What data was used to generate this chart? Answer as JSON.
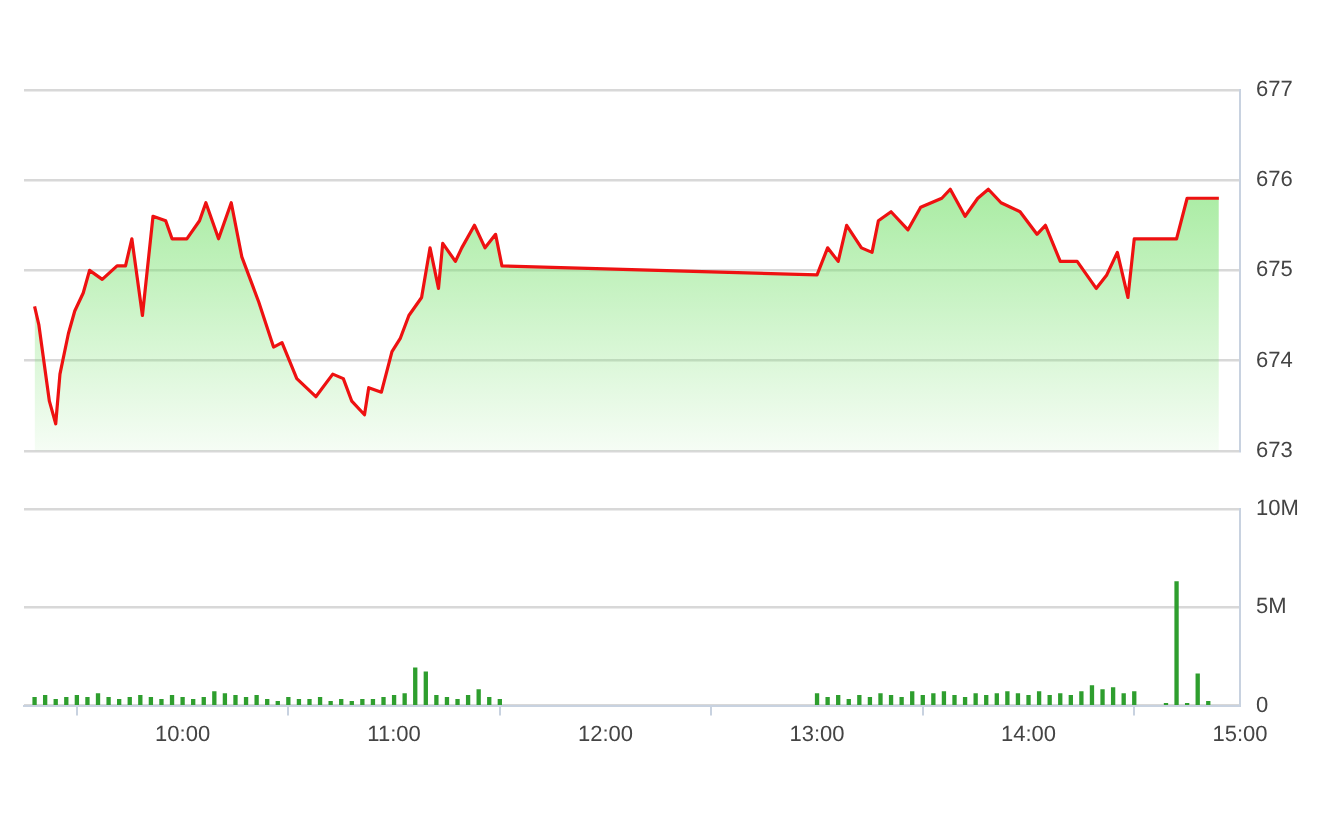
{
  "chart_data": [
    {
      "type": "area",
      "xlim": [
        9.25,
        15
      ],
      "ylim": [
        673,
        677
      ],
      "yticks": [
        673,
        674,
        675,
        676,
        677
      ],
      "grid": "y",
      "tick_labels": "y",
      "legend": false,
      "series": [
        {
          "color": "#ee1111",
          "x": [
            9.3,
            9.32,
            9.37,
            9.4,
            9.42,
            9.46,
            9.49,
            9.53,
            9.56,
            9.62,
            9.69,
            9.73,
            9.76,
            9.81,
            9.86,
            9.92,
            9.95,
            10.02,
            10.08,
            10.11,
            10.17,
            10.23,
            10.28,
            10.36,
            10.43,
            10.47,
            10.54,
            10.63,
            10.71,
            10.76,
            10.8,
            10.86,
            10.88,
            10.94,
            10.99,
            11.03,
            11.07,
            11.13,
            11.17,
            11.21,
            11.23,
            11.29,
            11.32,
            11.38,
            11.43,
            11.48,
            11.51,
            13.0,
            13.05,
            13.1,
            13.14,
            13.21,
            13.26,
            13.29,
            13.35,
            13.43,
            13.49,
            13.59,
            13.63,
            13.7,
            13.76,
            13.81,
            13.87,
            13.96,
            14.04,
            14.08,
            14.15,
            14.23,
            14.32,
            14.37,
            14.42,
            14.47,
            14.5,
            14.7,
            14.75,
            14.9
          ],
          "values": [
            674.6,
            674.4,
            673.55,
            673.3,
            673.85,
            674.3,
            674.55,
            674.75,
            675.0,
            674.9,
            675.05,
            675.05,
            675.35,
            674.5,
            675.6,
            675.55,
            675.35,
            675.35,
            675.55,
            675.75,
            675.35,
            675.75,
            675.15,
            674.65,
            674.15,
            674.2,
            673.8,
            673.6,
            673.85,
            673.8,
            673.55,
            673.4,
            673.7,
            673.65,
            674.1,
            674.25,
            674.5,
            674.7,
            675.25,
            674.8,
            675.3,
            675.1,
            675.25,
            675.5,
            675.25,
            675.4,
            675.05,
            674.95,
            675.25,
            675.1,
            675.5,
            675.25,
            675.2,
            675.55,
            675.65,
            675.45,
            675.7,
            675.8,
            675.9,
            675.6,
            675.8,
            675.9,
            675.75,
            675.65,
            675.4,
            675.5,
            675.1,
            675.1,
            674.8,
            674.95,
            675.2,
            674.7,
            675.35,
            675.35,
            675.8,
            675.8
          ]
        }
      ]
    },
    {
      "type": "bar",
      "xlim": [
        9.25,
        15
      ],
      "xticks": [
        {
          "value": 10,
          "label": "10:00"
        },
        {
          "value": 11,
          "label": "11:00"
        },
        {
          "value": 12,
          "label": "12:00"
        },
        {
          "value": 13,
          "label": "13:00"
        },
        {
          "value": 14,
          "label": "14:00"
        },
        {
          "value": 15,
          "label": "15:00"
        }
      ],
      "ylim": [
        0,
        10
      ],
      "yticks": [
        0,
        {
          "value": 5,
          "label": "5M"
        },
        {
          "value": 10,
          "label": "10M"
        }
      ],
      "grid": "y",
      "legend": false,
      "series": [
        {
          "color": "#2e9e2e",
          "x": [
            9.3,
            9.35,
            9.4,
            9.45,
            9.5,
            9.55,
            9.6,
            9.65,
            9.7,
            9.75,
            9.8,
            9.85,
            9.9,
            9.95,
            10.0,
            10.05,
            10.1,
            10.15,
            10.2,
            10.25,
            10.3,
            10.35,
            10.4,
            10.45,
            10.5,
            10.55,
            10.6,
            10.65,
            10.7,
            10.75,
            10.8,
            10.85,
            10.9,
            10.95,
            11.0,
            11.05,
            11.1,
            11.15,
            11.2,
            11.25,
            11.3,
            11.35,
            11.4,
            11.45,
            11.5,
            13.0,
            13.05,
            13.1,
            13.15,
            13.2,
            13.25,
            13.3,
            13.35,
            13.4,
            13.45,
            13.5,
            13.55,
            13.6,
            13.65,
            13.7,
            13.75,
            13.8,
            13.85,
            13.9,
            13.95,
            14.0,
            14.05,
            14.1,
            14.15,
            14.2,
            14.25,
            14.3,
            14.35,
            14.4,
            14.45,
            14.5,
            14.65,
            14.7,
            14.75,
            14.8,
            14.85
          ],
          "values": [
            0.4,
            0.5,
            0.3,
            0.4,
            0.5,
            0.4,
            0.6,
            0.4,
            0.3,
            0.4,
            0.5,
            0.4,
            0.3,
            0.5,
            0.4,
            0.3,
            0.4,
            0.7,
            0.6,
            0.5,
            0.4,
            0.5,
            0.3,
            0.2,
            0.4,
            0.3,
            0.3,
            0.4,
            0.2,
            0.3,
            0.2,
            0.3,
            0.3,
            0.4,
            0.5,
            0.6,
            1.9,
            1.7,
            0.5,
            0.4,
            0.3,
            0.5,
            0.8,
            0.4,
            0.3,
            0.6,
            0.4,
            0.5,
            0.3,
            0.5,
            0.4,
            0.6,
            0.5,
            0.4,
            0.7,
            0.5,
            0.6,
            0.7,
            0.5,
            0.4,
            0.6,
            0.5,
            0.6,
            0.7,
            0.6,
            0.5,
            0.7,
            0.5,
            0.6,
            0.5,
            0.7,
            1.0,
            0.8,
            0.9,
            0.6,
            0.7,
            0.1,
            6.3,
            0.1,
            1.6,
            0.2
          ]
        }
      ]
    }
  ]
}
